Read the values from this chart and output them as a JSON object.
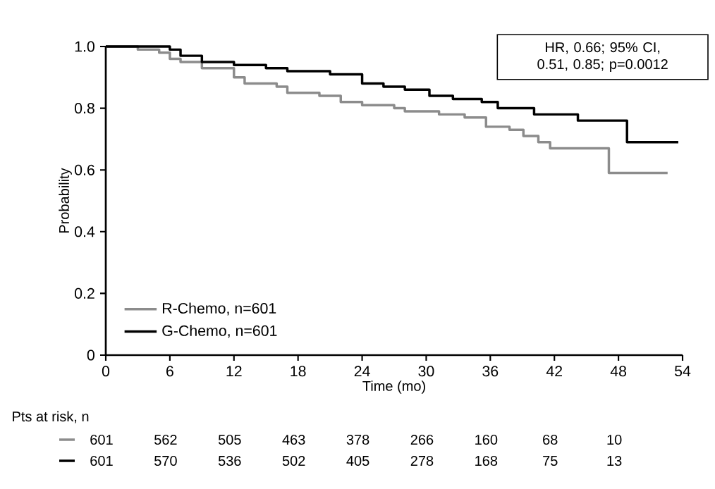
{
  "chart_data": {
    "type": "step",
    "xlabel": "Time (mo)",
    "ylabel": "Probability",
    "xlim": [
      0,
      54
    ],
    "xticks": [
      0,
      6,
      12,
      18,
      24,
      30,
      36,
      42,
      48,
      54
    ],
    "ylim": [
      0,
      1
    ],
    "yticks": [
      0,
      0.2,
      0.4,
      0.6,
      0.8,
      {
        "value": 1,
        "label": "1.0"
      }
    ],
    "legend": "bottom left",
    "grid": false,
    "marker": "none",
    "line_style": "solid",
    "series": [
      {
        "name": "R-Chemo, n=601",
        "color": "#8c8c8c",
        "x": [
          0,
          3,
          5,
          6,
          7,
          9,
          12,
          13,
          16,
          17,
          20,
          22,
          24,
          27,
          28,
          31.2,
          33.6,
          35.6,
          37.8,
          39.1,
          40.5,
          41.6,
          47.1,
          52.6
        ],
        "values": [
          1,
          0.99,
          0.98,
          0.96,
          0.95,
          0.93,
          0.9,
          0.88,
          0.87,
          0.85,
          0.84,
          0.82,
          0.81,
          0.8,
          0.79,
          0.78,
          0.77,
          0.74,
          0.73,
          0.71,
          0.69,
          0.67,
          0.59,
          0.59
        ]
      },
      {
        "name": "G-Chemo, n=601",
        "color": "#000000",
        "x": [
          0,
          6,
          7,
          9,
          12,
          15,
          17,
          21,
          24,
          26,
          28,
          30.3,
          32.5,
          35.2,
          36.7,
          40.1,
          44.2,
          48.8,
          53.6
        ],
        "values": [
          1,
          0.99,
          0.97,
          0.95,
          0.94,
          0.93,
          0.92,
          0.91,
          0.88,
          0.87,
          0.86,
          0.84,
          0.83,
          0.82,
          0.8,
          0.78,
          0.76,
          0.69,
          0.69
        ]
      }
    ],
    "annotations": [
      "HR, 0.66; 95% CI, 0.51, 0.85; p=0.0012",
      "Pts at risk, n",
      "601",
      "562",
      "505",
      "463",
      "378",
      "266",
      "160",
      "68",
      "10",
      "601",
      "570",
      "536",
      "502",
      "405",
      "278",
      "168",
      "75",
      "13"
    ]
  }
}
